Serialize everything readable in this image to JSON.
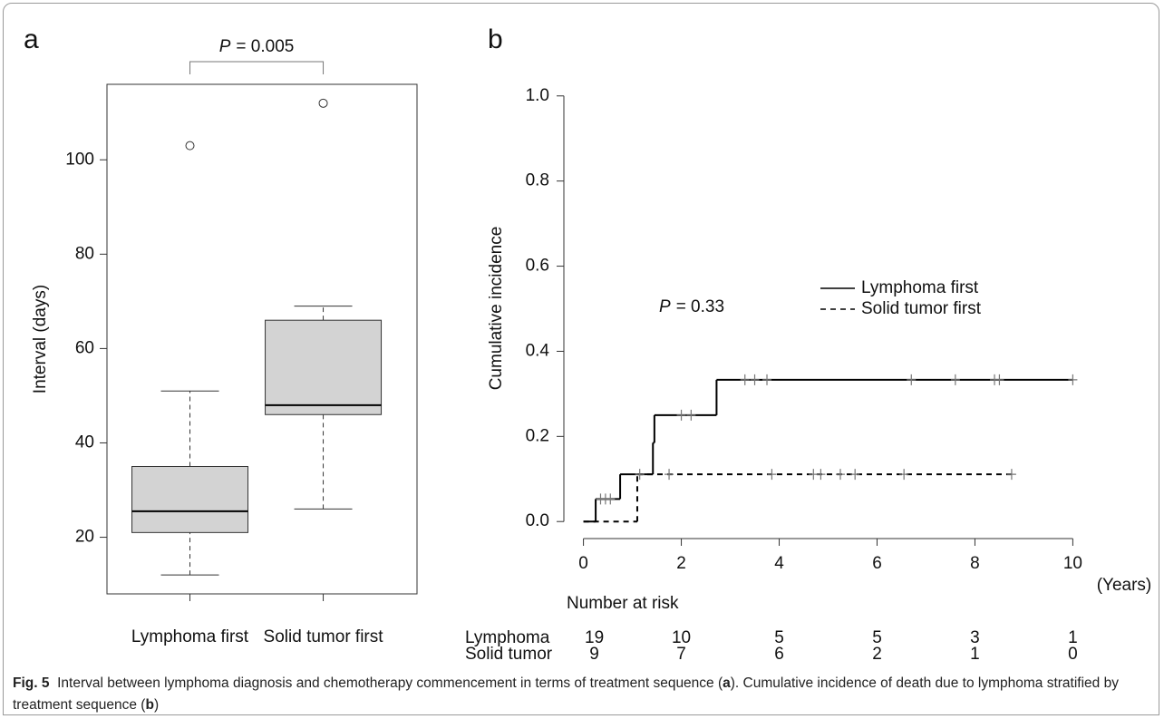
{
  "chart_data": [
    {
      "type": "box",
      "panel": "a",
      "ylabel": "Interval (days)",
      "categories": [
        "Lymphoma first",
        "Solid tumor first"
      ],
      "boxes": [
        {
          "whisker_low": 12,
          "q1": 21,
          "median": 25.5,
          "q3": 35,
          "whisker_high": 51,
          "outliers": [
            103
          ]
        },
        {
          "whisker_low": 26,
          "q1": 46,
          "median": 48,
          "q3": 66,
          "whisker_high": 69,
          "outliers": [
            112
          ]
        }
      ],
      "color": "#d3d3d3",
      "ylim": [
        8,
        116
      ],
      "yticks": [
        20,
        40,
        60,
        80,
        100
      ],
      "p_italic": "P",
      "p_text": "= 0.005"
    },
    {
      "type": "step",
      "panel": "b",
      "ylabel": "Cumulative incidence",
      "xunit": "(Years)",
      "xlim": [
        -0.4,
        10.4
      ],
      "xticks": [
        0,
        2,
        4,
        6,
        8,
        10
      ],
      "ylim": [
        -0.04,
        1.04
      ],
      "yticks": [
        {
          "value": 0,
          "label": "0.0"
        },
        0.2,
        0.4,
        0.6,
        0.8,
        {
          "value": 1,
          "label": "1.0"
        }
      ],
      "series": [
        {
          "name": "Lymphoma first",
          "color": "#000000",
          "linestyle": "solid",
          "x": [
            0,
            0.25,
            0.75,
            1.42,
            1.45,
            2.72,
            10
          ],
          "values": [
            0,
            0.053,
            0.111,
            0.185,
            0.25,
            0.333,
            0.333
          ],
          "censored_x": [
            0.35,
            0.45,
            0.55,
            2.0,
            2.2,
            3.3,
            3.5,
            3.75,
            6.7,
            7.6,
            8.4,
            8.5,
            10.0
          ],
          "censored_values": [
            0.053,
            0.053,
            0.053,
            0.25,
            0.25,
            0.333,
            0.333,
            0.333,
            0.333,
            0.333,
            0.333,
            0.333,
            0.333
          ]
        },
        {
          "name": "Solid tumor first",
          "color": "#000000",
          "linestyle": "dashed",
          "x": [
            0,
            1.1,
            8.75
          ],
          "values": [
            0,
            0.111,
            0.111
          ],
          "censored_x": [
            1.15,
            1.75,
            3.85,
            4.7,
            4.85,
            5.25,
            5.55,
            6.55,
            8.75
          ],
          "censored_values": [
            0.111,
            0.111,
            0.111,
            0.111,
            0.111,
            0.111,
            0.111,
            0.111,
            0.111
          ]
        }
      ],
      "p_italic": "P",
      "p_text": "= 0.33",
      "risk_title": "Number at risk",
      "risk_rows": [
        {
          "name": "Lymphoma",
          "values": [
            19,
            10,
            5,
            5,
            3,
            1
          ]
        },
        {
          "name": "Solid tumor",
          "values": [
            9,
            7,
            6,
            2,
            1,
            0
          ]
        }
      ]
    }
  ],
  "caption": [
    {
      "text": "Fig. 5",
      "bold": true
    },
    {
      "text": "  Interval between lymphoma diagnosis and chemotherapy commencement in terms of treatment sequence (",
      "bold": false
    },
    {
      "text": "a",
      "bold": true
    },
    {
      "text": "). Cumulative incidence of death due to lymphoma stratified by treatment sequence (",
      "bold": false
    },
    {
      "text": "b",
      "bold": true
    },
    {
      "text": ")",
      "bold": false
    }
  ]
}
